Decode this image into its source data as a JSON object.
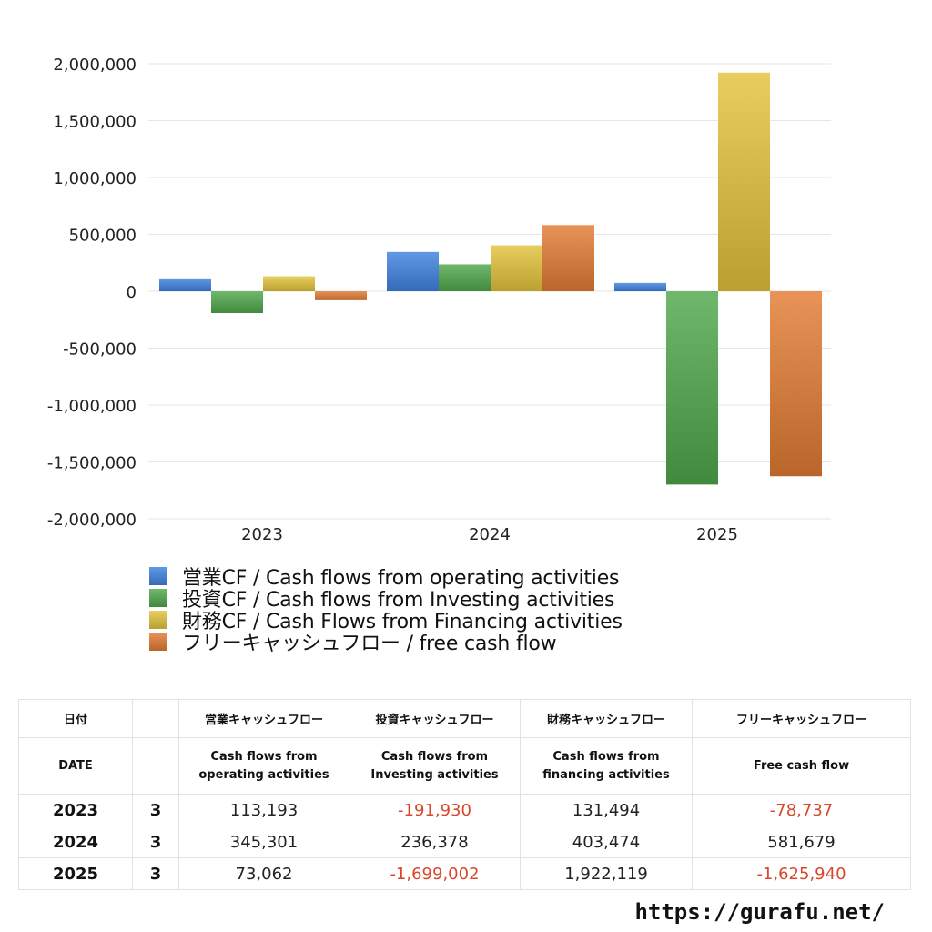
{
  "chart_data": {
    "type": "bar",
    "categories": [
      "2023",
      "2024",
      "2025"
    ],
    "series": [
      {
        "name": "営業CF / Cash flows from operating activities",
        "values": [
          113193,
          345301,
          73062
        ],
        "color": "#3f82e0"
      },
      {
        "name": "投資CF / Cash flows from Investing activities",
        "values": [
          -191930,
          236378,
          -1699002
        ],
        "color": "#4fa84a"
      },
      {
        "name": "財務CF / Cash Flows from Financing activities",
        "values": [
          131494,
          403474,
          1922119
        ],
        "color": "#e3c23c"
      },
      {
        "name": "フリーキャッシュフロー / free cash flow",
        "values": [
          -78737,
          581679,
          -1625940
        ],
        "color": "#e37b33"
      }
    ],
    "ylim": [
      -2000000,
      2000000
    ],
    "yticks": [
      "2,000,000",
      "1,500,000",
      "1,000,000",
      "500,000",
      "0",
      "-500,000",
      "-1,000,000",
      "-1,500,000",
      "-2,000,000"
    ],
    "grid": true,
    "legend": "bottom-left"
  },
  "table": {
    "headers_jp": [
      "日付",
      "営業キャッシュフロー",
      "投資キャッシュフロー",
      "財務キャッシュフロー",
      "フリーキャッシュフロー"
    ],
    "headers_en": [
      "DATE",
      "Cash flows from operating activities",
      "Cash flows from Investing activities",
      "Cash flows from financing activities",
      "Free cash flow"
    ],
    "headers_en_lines": [
      [
        "DATE"
      ],
      [
        "Cash flows from",
        "operating activities"
      ],
      [
        "Cash flows from",
        "Investing activities"
      ],
      [
        "Cash flows from",
        "financing activities"
      ],
      [
        "Free cash flow"
      ]
    ],
    "rows": [
      {
        "year": "2023",
        "month": "3",
        "values": [
          "113,193",
          "-191,930",
          "131,494",
          "-78,737"
        ]
      },
      {
        "year": "2024",
        "month": "3",
        "values": [
          "345,301",
          "236,378",
          "403,474",
          "581,679"
        ]
      },
      {
        "year": "2025",
        "month": "3",
        "values": [
          "73,062",
          "-1,699,002",
          "1,922,119",
          "-1,625,940"
        ]
      }
    ]
  },
  "site": "https://gurafu.net/"
}
